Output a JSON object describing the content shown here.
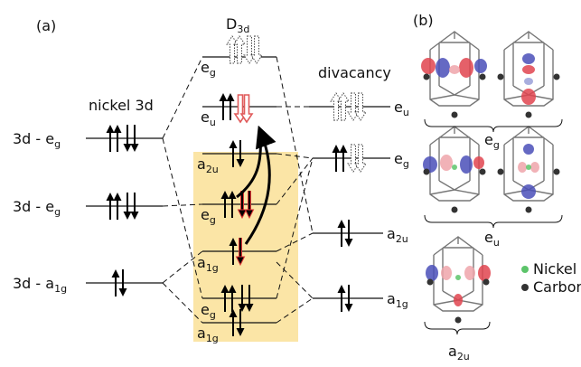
{
  "panel_labels": [
    "(a)",
    "(b)"
  ],
  "center_title": {
    "main": "D",
    "sub": "3d"
  },
  "left": {
    "title": "nickel 3d",
    "levels": [
      {
        "main": "3d - e",
        "sub": "g"
      },
      {
        "main": "3d - e",
        "sub": "g"
      },
      {
        "main": "3d - a",
        "sub": "1g"
      }
    ]
  },
  "center": {
    "levels": [
      {
        "main": "e",
        "sub": "g"
      },
      {
        "main": "e",
        "sub": "u"
      },
      {
        "main": "a",
        "sub": "2u"
      },
      {
        "main": "e",
        "sub": "g"
      },
      {
        "main": "a",
        "sub": "1g"
      },
      {
        "main": "e",
        "sub": "g"
      },
      {
        "main": "a",
        "sub": "1g"
      }
    ]
  },
  "right": {
    "title": "divacancy",
    "levels": [
      {
        "main": "e",
        "sub": "u"
      },
      {
        "main": "e",
        "sub": "g"
      },
      {
        "main": "a",
        "sub": "2u"
      },
      {
        "main": "a",
        "sub": "1g"
      }
    ]
  },
  "orbitals": {
    "groups": [
      {
        "main": "e",
        "sub": "g"
      },
      {
        "main": "e",
        "sub": "u"
      },
      {
        "main": "a",
        "sub": "2u"
      }
    ],
    "legend": [
      "Nickel",
      "Carbon"
    ]
  }
}
